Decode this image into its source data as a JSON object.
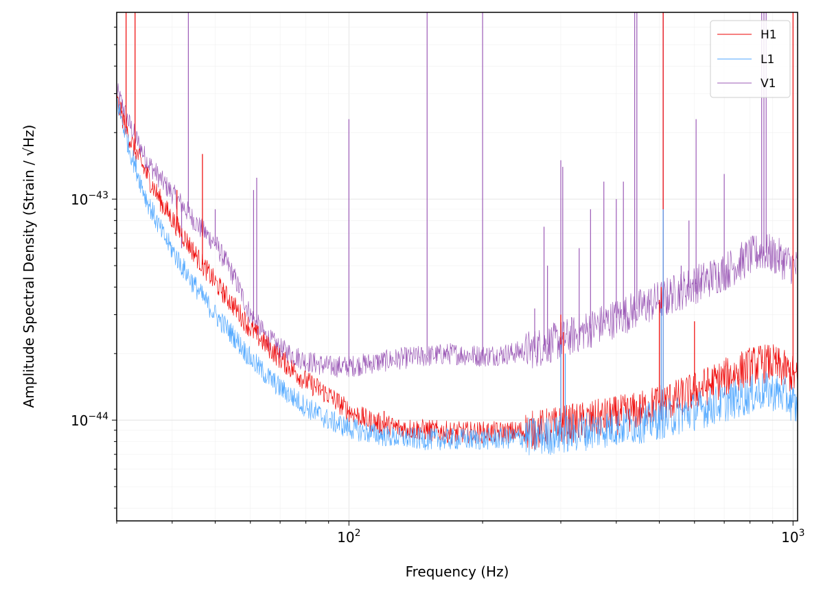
{
  "chart_data": {
    "type": "line",
    "title": "",
    "xlabel": "Frequency (Hz)",
    "ylabel": "Amplitude Spectral Density (Strain / √Hz)",
    "xscale": "log",
    "yscale": "log",
    "xlim": [
      30,
      1024
    ],
    "ylim": [
      3.5e-45,
      7e-43
    ],
    "grid": true,
    "legend_position": "top-right",
    "x_ticks": [
      {
        "value": 100,
        "label": "10",
        "exp": "2"
      },
      {
        "value": 1000,
        "label": "10",
        "exp": "3"
      }
    ],
    "y_ticks": [
      {
        "value": 1e-44,
        "label": "10",
        "exp": "−44"
      },
      {
        "value": 1e-43,
        "label": "10",
        "exp": "−43"
      }
    ],
    "series": [
      {
        "name": "H1",
        "color": "#ee0000",
        "x": [
          30,
          32,
          35,
          38,
          42,
          46,
          50,
          55,
          60,
          65,
          70,
          80,
          90,
          100,
          110,
          120,
          130,
          150,
          170,
          200,
          230,
          260,
          300,
          350,
          400,
          450,
          500,
          550,
          600,
          650,
          700,
          750,
          800,
          850,
          900,
          950,
          1000,
          1024
        ],
        "y": [
          2.8e-43,
          1.9e-43,
          1.3e-43,
          9.5e-44,
          7e-44,
          5.3e-44,
          4.2e-44,
          3.3e-44,
          2.6e-44,
          2.2e-44,
          1.9e-44,
          1.5e-44,
          1.3e-44,
          1.1e-44,
          1e-44,
          9.5e-45,
          9.2e-45,
          9e-45,
          8.8e-45,
          8.8e-45,
          8.8e-45,
          9e-45,
          9.5e-45,
          1e-44,
          1.05e-44,
          1.1e-44,
          1.2e-44,
          1.25e-44,
          1.35e-44,
          1.45e-44,
          1.55e-44,
          1.65e-44,
          1.75e-44,
          1.8e-44,
          1.8e-44,
          1.7e-44,
          1.6e-44,
          1.5e-44
        ]
      },
      {
        "name": "L1",
        "color": "#4da6ff",
        "x": [
          30,
          32,
          35,
          38,
          42,
          46,
          50,
          55,
          60,
          65,
          70,
          80,
          90,
          100,
          110,
          120,
          130,
          150,
          170,
          200,
          230,
          260,
          300,
          350,
          400,
          450,
          500,
          550,
          600,
          650,
          700,
          750,
          800,
          850,
          900,
          950,
          1000,
          1024
        ],
        "y": [
          2.8e-43,
          1.7e-43,
          1e-43,
          7e-44,
          5e-44,
          3.8e-44,
          3e-44,
          2.4e-44,
          1.9e-44,
          1.6e-44,
          1.4e-44,
          1.15e-44,
          1e-44,
          9.2e-45,
          8.8e-45,
          8.5e-45,
          8.3e-45,
          8.2e-45,
          8.2e-45,
          8.2e-45,
          8.3e-45,
          8.4e-45,
          8.6e-45,
          9e-45,
          9.3e-45,
          9.6e-45,
          1e-44,
          1.05e-44,
          1.1e-44,
          1.15e-44,
          1.2e-44,
          1.25e-44,
          1.3e-44,
          1.35e-44,
          1.35e-44,
          1.3e-44,
          1.2e-44,
          1.1e-44
        ]
      },
      {
        "name": "V1",
        "color": "#9b59b6",
        "x": [
          30,
          32,
          35,
          38,
          42,
          46,
          50,
          55,
          60,
          65,
          70,
          80,
          90,
          100,
          110,
          120,
          130,
          150,
          170,
          200,
          230,
          260,
          300,
          350,
          400,
          450,
          500,
          550,
          600,
          650,
          700,
          750,
          800,
          850,
          900,
          950,
          1000,
          1024
        ],
        "y": [
          3.1e-43,
          2.2e-43,
          1.5e-43,
          1.2e-43,
          9.5e-44,
          7.5e-44,
          6.3e-44,
          4.5e-44,
          3e-44,
          2.4e-44,
          2.1e-44,
          1.85e-44,
          1.75e-44,
          1.75e-44,
          1.8e-44,
          1.85e-44,
          1.9e-44,
          1.95e-44,
          2e-44,
          1.95e-44,
          2e-44,
          2.1e-44,
          2.3e-44,
          2.6e-44,
          2.9e-44,
          3.2e-44,
          3.5e-44,
          3.8e-44,
          4.1e-44,
          4.4e-44,
          4.7e-44,
          5.1e-44,
          5.5e-44,
          5.8e-44,
          5.6e-44,
          5.3e-44,
          5e-44,
          4.8e-44
        ]
      }
    ],
    "spikes": [
      {
        "series": "H1",
        "x": 31.5,
        "y": 7e-43
      },
      {
        "series": "H1",
        "x": 33,
        "y": 7e-43
      },
      {
        "series": "H1",
        "x": 41,
        "y": 1.1e-43
      },
      {
        "series": "H1",
        "x": 46.8,
        "y": 1.6e-43
      },
      {
        "series": "H1",
        "x": 52,
        "y": 4e-44
      },
      {
        "series": "H1",
        "x": 60,
        "y": 2.6e-44
      },
      {
        "series": "H1",
        "x": 120,
        "y": 1.1e-44
      },
      {
        "series": "H1",
        "x": 300,
        "y": 3e-44
      },
      {
        "series": "H1",
        "x": 304,
        "y": 2.5e-44
      },
      {
        "series": "H1",
        "x": 500,
        "y": 3.5e-44
      },
      {
        "series": "H1",
        "x": 505,
        "y": 4e-44
      },
      {
        "series": "H1",
        "x": 510,
        "y": 7e-43
      },
      {
        "series": "H1",
        "x": 600,
        "y": 2.8e-44
      },
      {
        "series": "H1",
        "x": 1000,
        "y": 7e-43
      },
      {
        "series": "L1",
        "x": 300,
        "y": 2.2e-44
      },
      {
        "series": "L1",
        "x": 307,
        "y": 2e-44
      },
      {
        "series": "L1",
        "x": 505,
        "y": 3.2e-44
      },
      {
        "series": "L1",
        "x": 510,
        "y": 9e-44
      },
      {
        "series": "L1",
        "x": 1000,
        "y": 1.4e-44
      },
      {
        "series": "V1",
        "x": 42,
        "y": 6e-44
      },
      {
        "series": "V1",
        "x": 43.5,
        "y": 7e-43
      },
      {
        "series": "V1",
        "x": 50,
        "y": 9e-44
      },
      {
        "series": "V1",
        "x": 61,
        "y": 1.1e-43
      },
      {
        "series": "V1",
        "x": 62,
        "y": 1.25e-43
      },
      {
        "series": "V1",
        "x": 100,
        "y": 2.3e-43
      },
      {
        "series": "V1",
        "x": 150,
        "y": 7e-43
      },
      {
        "series": "V1",
        "x": 200,
        "y": 7e-43
      },
      {
        "series": "V1",
        "x": 262,
        "y": 3.2e-44
      },
      {
        "series": "V1",
        "x": 275,
        "y": 7.5e-44
      },
      {
        "series": "V1",
        "x": 280,
        "y": 5e-44
      },
      {
        "series": "V1",
        "x": 300,
        "y": 1.5e-43
      },
      {
        "series": "V1",
        "x": 303,
        "y": 1.4e-43
      },
      {
        "series": "V1",
        "x": 330,
        "y": 6e-44
      },
      {
        "series": "V1",
        "x": 350,
        "y": 9e-44
      },
      {
        "series": "V1",
        "x": 375,
        "y": 1.2e-43
      },
      {
        "series": "V1",
        "x": 400,
        "y": 1e-43
      },
      {
        "series": "V1",
        "x": 415,
        "y": 1.2e-43
      },
      {
        "series": "V1",
        "x": 440,
        "y": 7e-43
      },
      {
        "series": "V1",
        "x": 445,
        "y": 7e-43
      },
      {
        "series": "V1",
        "x": 510,
        "y": 7e-43
      },
      {
        "series": "V1",
        "x": 520,
        "y": 3e-44
      },
      {
        "series": "V1",
        "x": 560,
        "y": 5e-44
      },
      {
        "series": "V1",
        "x": 583,
        "y": 8e-44
      },
      {
        "series": "V1",
        "x": 605,
        "y": 2.3e-43
      },
      {
        "series": "V1",
        "x": 700,
        "y": 1.3e-43
      },
      {
        "series": "V1",
        "x": 850,
        "y": 7e-43
      },
      {
        "series": "V1",
        "x": 860,
        "y": 7e-43
      },
      {
        "series": "V1",
        "x": 870,
        "y": 7e-43
      }
    ]
  }
}
